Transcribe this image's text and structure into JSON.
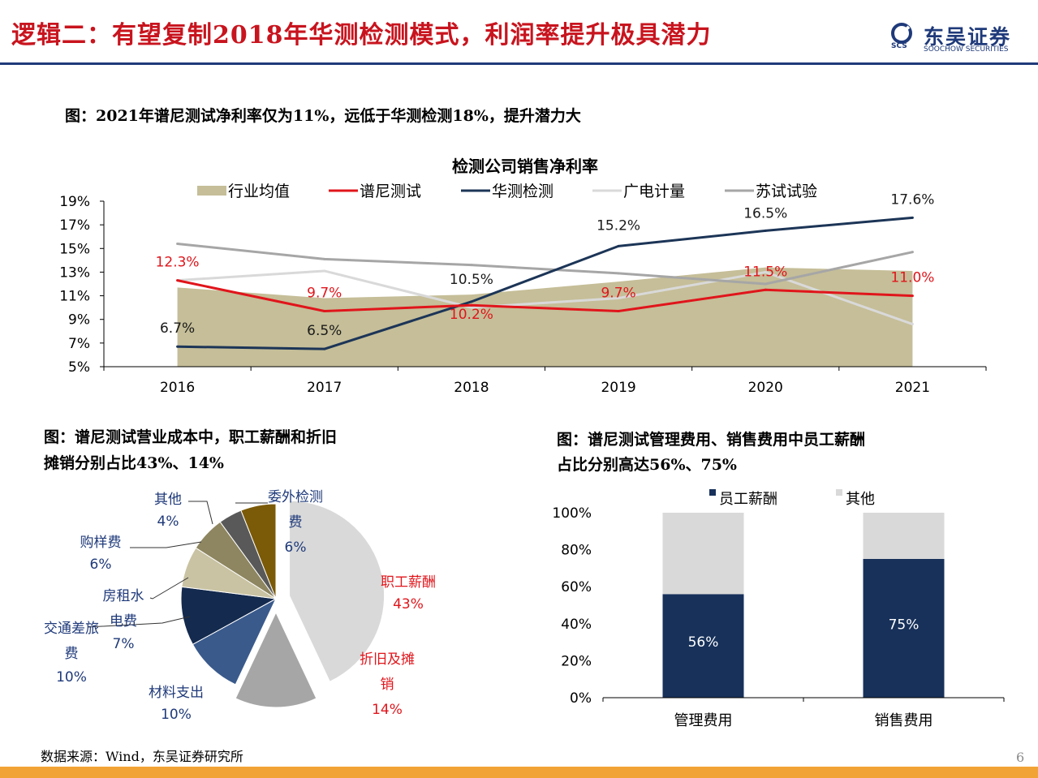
{
  "header": {
    "title": "逻辑二：有望复制2018年华测检测模式，利润率提升极具潜力",
    "logo_text": "东吴证券",
    "logo_subtext": "SOOCHOW SECURITIES",
    "logo_mark_text": "SCS"
  },
  "captions": {
    "top": "图：2021年谱尼测试净利率仅为11%，远低于华测检测18%，提升潜力大",
    "pie_line1": "图：谱尼测试营业成本中，职工薪酬和折旧",
    "pie_line2": "摊销分别占比43%、14%",
    "bar_line1": "图：谱尼测试管理费用、销售费用中员工薪酬",
    "bar_line2": "占比分别高达56%、75%"
  },
  "footer": {
    "source": "数据来源：Wind，东吴证券研究所",
    "page_number": "6"
  },
  "chart_data": [
    {
      "type": "line",
      "title": "检测公司销售净利率",
      "categories": [
        "2016",
        "2017",
        "2018",
        "2019",
        "2020",
        "2021"
      ],
      "ylim": [
        5,
        19
      ],
      "yticks": [
        "5%",
        "7%",
        "9%",
        "11%",
        "13%",
        "15%",
        "17%",
        "19%"
      ],
      "legend_position": "top",
      "series": [
        {
          "name": "行业均值",
          "kind": "area",
          "color": "#c5be98",
          "values": [
            11.7,
            10.8,
            11.1,
            12.2,
            13.4,
            13.1
          ],
          "labels": []
        },
        {
          "name": "谱尼测试",
          "kind": "line",
          "color": "#e0151b",
          "values": [
            12.3,
            9.7,
            10.2,
            9.7,
            11.5,
            11.0
          ],
          "labels": [
            "12.3%",
            "9.7%",
            "10.2%",
            "9.7%",
            "11.5%",
            "11.0%"
          ]
        },
        {
          "name": "华测检测",
          "kind": "line",
          "color": "#1c3557",
          "values": [
            6.7,
            6.5,
            10.5,
            15.2,
            16.5,
            17.6
          ],
          "labels": [
            "6.7%",
            "6.5%",
            "10.5%",
            "15.2%",
            "16.5%",
            "17.6%"
          ]
        },
        {
          "name": "广电计量",
          "kind": "line",
          "color": "#d9d9d9",
          "values": [
            12.3,
            13.1,
            10.0,
            10.8,
            13.0,
            8.6
          ],
          "labels": []
        },
        {
          "name": "苏试试验",
          "kind": "line",
          "color": "#a6a6a6",
          "values": [
            15.4,
            14.1,
            13.6,
            12.9,
            12.0,
            14.7
          ],
          "labels": []
        }
      ]
    },
    {
      "type": "pie",
      "slices": [
        {
          "label": "职工薪酬",
          "value": 43,
          "pct": "43%",
          "color": "#d9d9d9",
          "text_color": "#e0151b"
        },
        {
          "label": "折旧及摊销",
          "value": 14,
          "pct": "14%",
          "color": "#a6a6a6",
          "text_color": "#e0151b"
        },
        {
          "label": "材料支出",
          "value": 10,
          "pct": "10%",
          "color": "#3a5a8c",
          "text_color": "#1f3a7a"
        },
        {
          "label": "交通差旅费",
          "value": 10,
          "pct": "10%",
          "color": "#142a4e",
          "text_color": "#1f3a7a"
        },
        {
          "label": "房租水电费",
          "value": 7,
          "pct": "7%",
          "color": "#c9c3a3",
          "text_color": "#1f3a7a"
        },
        {
          "label": "购样费",
          "value": 6,
          "pct": "6%",
          "color": "#8e8660",
          "text_color": "#1f3a7a"
        },
        {
          "label": "其他",
          "value": 4,
          "pct": "4%",
          "color": "#595959",
          "text_color": "#1f3a7a"
        },
        {
          "label": "委外检测费",
          "value": 6,
          "pct": "6%",
          "color": "#7b5a08",
          "text_color": "#1f3a7a"
        }
      ]
    },
    {
      "type": "bar",
      "stacked": true,
      "categories": [
        "管理费用",
        "销售费用"
      ],
      "ylim": [
        0,
        100
      ],
      "yticks": [
        "0%",
        "20%",
        "40%",
        "60%",
        "80%",
        "100%"
      ],
      "legend_position": "top",
      "series": [
        {
          "name": "员工薪酬",
          "color": "#17315a",
          "values": [
            56,
            75
          ],
          "labels": [
            "56%",
            "75%"
          ]
        },
        {
          "name": "其他",
          "color": "#d9d9d9",
          "values": [
            44,
            25
          ],
          "labels": []
        }
      ]
    }
  ]
}
